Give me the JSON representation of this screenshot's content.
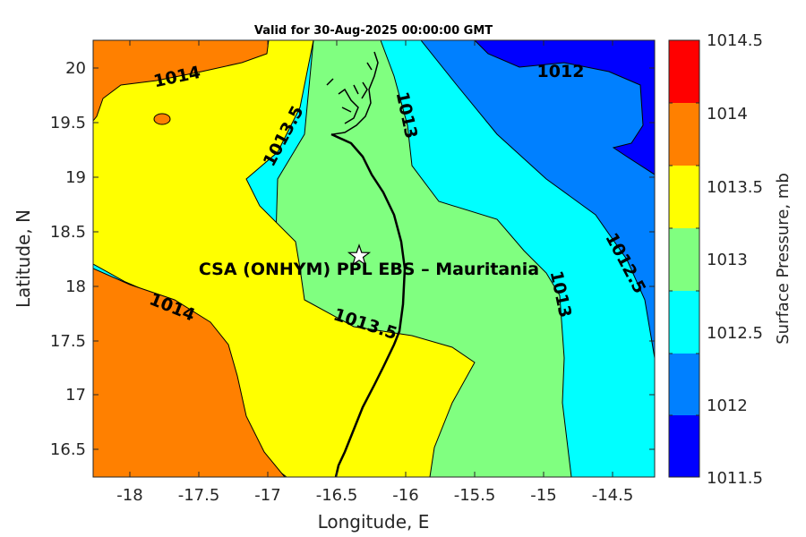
{
  "map": {
    "title": "Valid for 30-Aug-2025 00:00:00 GMT",
    "xlabel": "Longitude, E",
    "ylabel": "Latitude, N",
    "x_ticks": [
      "-18",
      "-17.5",
      "-17",
      "-16.5",
      "-16",
      "-15.5",
      "-15",
      "-14.5"
    ],
    "y_ticks": [
      "20",
      "19.5",
      "19",
      "18.5",
      "18",
      "17.5",
      "17",
      "16.5"
    ],
    "site_label": "CSA (ONHYM) PPL EBS  – Mauritania",
    "site_marker": "star-icon",
    "contour_labels": [
      "1014",
      "1013.5",
      "1013",
      "1012",
      "1012.5",
      "1013",
      "1014",
      "1013.5"
    ]
  },
  "colorbar": {
    "title": "Surface Pressure, mb",
    "labels": [
      "1014.5",
      "1014",
      "1013.5",
      "1013",
      "1012.5",
      "1012",
      "1011.5"
    ],
    "colors": [
      "#ff0000",
      "#ff8000",
      "#ffff00",
      "#80ff80",
      "#00ffff",
      "#0080ff",
      "#0000ff"
    ]
  },
  "chart_data": {
    "type": "heatmap",
    "title": "Valid for 30-Aug-2025 00:00:00 GMT",
    "xlabel": "Longitude, E",
    "ylabel": "Latitude, N",
    "xlim": [
      -18.3,
      -14.2
    ],
    "ylim": [
      16.2,
      20.3
    ],
    "variable": "Surface Pressure, mb",
    "levels": [
      1011.5,
      1012,
      1012.5,
      1013,
      1013.5,
      1014,
      1014.5
    ],
    "site": {
      "name": "CSA (ONHYM) PPL EBS  – Mauritania",
      "lon": -16.35,
      "lat": 18.27
    }
  }
}
